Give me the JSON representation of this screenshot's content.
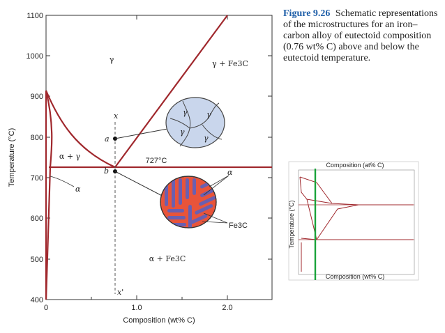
{
  "caption": {
    "figure_label": "Figure 9.26",
    "text": "Schematic representations of the microstructures for an iron–carbon alloy of eutectoid composition (0.76 wt% C) above and below the eutectoid temperature."
  },
  "diagram": {
    "y_axis_label": "Temperature (°C)",
    "x_axis_label": "Composition (wt% C)",
    "y_ticks": [
      "1100",
      "1000",
      "900",
      "800",
      "700",
      "600",
      "500",
      "400"
    ],
    "x_ticks": [
      "0",
      "1.0",
      "2.0"
    ],
    "phase_labels": {
      "gamma": "γ",
      "gamma_fe3c": "γ + Fe3C",
      "alpha_gamma": "α + γ",
      "alpha": "α",
      "alpha_fe3c": "α + Fe3C"
    },
    "eutectoid_temp_label": "727°C",
    "point_a": "a",
    "point_b": "b",
    "line_top_label": "x",
    "line_bottom_label": "x'",
    "micro_top_labels": [
      "γ",
      "γ",
      "γ",
      "γ"
    ],
    "micro_bottom_alpha_label": "α",
    "micro_bottom_fe3c_label": "Fe3C",
    "colors": {
      "phase_line": "#a0282d",
      "grain_fill": "#c9d6ec",
      "pearlite_ferrite": "#e8543a",
      "pearlite_cementite": "#6a5fb0",
      "green_marker": "#1aa33a"
    }
  },
  "thumbnail": {
    "title": "Composition (at% C)",
    "x_label": "Composition (wt% C)",
    "y_label": "Temperature (°C)"
  }
}
